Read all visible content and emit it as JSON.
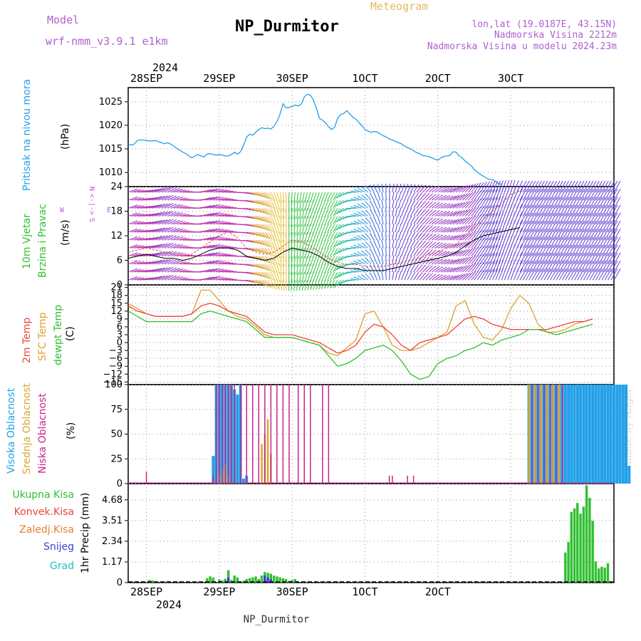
{
  "header": {
    "model_label": "Model",
    "model_name": "wrf-nmm_v3.9.1 e1km",
    "station": "NP_Durmitor",
    "meteogram": "Meteogram",
    "lonlat": "lon,lat (19.0187E, 43.15N)",
    "altitude": "Nadmorska Visina 2212m",
    "model_altitude": "Nadmorska Visina u modelu 2024.23m",
    "watermark": "made by Angel",
    "footer_station": "NP_Durmitor"
  },
  "colors": {
    "pressure": "#22a0e8",
    "wind_speed": "#000000",
    "wind_gust": "#e8463c",
    "t2m": "#e8463c",
    "tsfc": "#e0a030",
    "dewpoint": "#30c030",
    "cloud_high": "#22a0e8",
    "cloud_mid": "#d8a830",
    "cloud_low": "#cc2288",
    "precip_total": "#30c030",
    "precip_conv": "#e8463c",
    "precip_snow": "#4040d0",
    "precip_grad": "#20c0c0",
    "grid": "#909090"
  },
  "time_axis": {
    "year_label": "2024",
    "dates": [
      "28SEP",
      "29SEP",
      "30SEP",
      "1OCT",
      "2OCT",
      "3OCT"
    ]
  },
  "chart_data": [
    {
      "type": "line",
      "panel": "pressure",
      "ylabel": "Pritisak na nivou mora",
      "unit": "(hPa)",
      "ylim": [
        1007,
        1028
      ],
      "yticks": [
        1010,
        1015,
        1020,
        1025
      ],
      "x_hours_start": -6,
      "x_hours_step": 1,
      "series": [
        {
          "values": [
            1016.1,
            1015.8,
            1016.0,
            1016.8,
            1016.9,
            1016.9,
            1016.8,
            1016.7,
            1016.7,
            1016.8,
            1016.5,
            1016.3,
            1016.1,
            1016.3,
            1016.0,
            1015.6,
            1015.1,
            1014.7,
            1014.3,
            1014.0,
            1013.5,
            1013.1,
            1013.5,
            1013.8,
            1013.5,
            1013.3,
            1013.9,
            1014.0,
            1013.8,
            1013.7,
            1013.8,
            1013.7,
            1013.5,
            1013.5,
            1013.8,
            1014.3,
            1013.9,
            1014.4,
            1015.8,
            1017.5,
            1018.1,
            1017.9,
            1018.5,
            1019.1,
            1019.5,
            1019.3,
            1019.4,
            1019.2,
            1019.8,
            1020.8,
            1022.3,
            1024.6,
            1023.7,
            1023.8,
            1024.0,
            1024.3,
            1024.1,
            1024.5,
            1026.0,
            1026.6,
            1026.4,
            1025.4,
            1023.6,
            1021.5,
            1021.1,
            1020.5,
            1019.7,
            1019.1,
            1019.6,
            1021.5,
            1022.3,
            1022.5,
            1023.1,
            1022.4,
            1021.7,
            1021.3,
            1020.6,
            1019.9,
            1019.1,
            1018.8,
            1018.5,
            1018.7,
            1018.6,
            1018.2,
            1017.8,
            1017.5,
            1017.1,
            1016.9,
            1016.6,
            1016.3,
            1016.1,
            1015.6,
            1015.3,
            1015.0,
            1014.6,
            1014.2,
            1014.0,
            1013.6,
            1013.5,
            1013.4,
            1013.1,
            1012.8,
            1012.6,
            1013.1,
            1013.4,
            1013.5,
            1013.6,
            1014.4,
            1014.3,
            1013.5,
            1013.1,
            1012.4,
            1011.9,
            1011.4,
            1010.6,
            1010.1,
            1009.6,
            1009.2,
            1008.8,
            1008.5,
            1008.5,
            1008.1,
            1007.6,
            1007.5
          ]
        }
      ]
    },
    {
      "type": "line",
      "panel": "wind",
      "ylabel_lines": [
        "10m Vjetar",
        "Brzina i Pravac"
      ],
      "unit": "(m/s)",
      "direction_legend": [
        "N",
        "<-|->",
        "S",
        "W",
        "E"
      ],
      "ylim": [
        0,
        24
      ],
      "yticks": [
        0,
        6,
        12,
        18,
        24
      ],
      "x_hours_start": -6,
      "x_hours_step": 3,
      "speed": [
        6.5,
        7.0,
        7.5,
        7.0,
        6.5,
        6.5,
        6.0,
        6.5,
        7.5,
        8.5,
        9.0,
        9.0,
        8.5,
        7.0,
        6.5,
        6.0,
        6.5,
        8.0,
        9.0,
        8.5,
        8.0,
        7.0,
        5.5,
        4.5,
        4.0,
        4.0,
        3.5,
        3.5,
        3.5,
        4.0,
        4.5,
        5.0,
        5.5,
        6.0,
        6.5,
        7.0,
        8.0,
        9.5,
        11.0,
        12.0,
        12.5,
        13.0,
        13.5,
        14.0
      ],
      "gust": [
        8.0,
        8.5,
        9.0,
        8.5,
        8.0,
        7.5,
        7.0,
        7.5,
        9.0,
        10.5,
        12.0,
        13.0,
        11.5,
        9.0,
        8.0,
        7.5,
        8.0,
        9.5,
        11.0,
        10.5,
        9.5,
        8.0,
        6.5,
        5.5,
        5.0,
        5.0,
        4.5,
        4.5,
        4.5,
        5.0,
        5.5,
        6.0,
        6.5,
        7.5,
        8.0,
        9.0,
        10.0,
        12.0,
        14.0,
        16.0,
        18.0,
        20.0,
        22.0,
        23.0
      ],
      "direction_deg": [
        250,
        260,
        255,
        245,
        240,
        250,
        265,
        270,
        255,
        250,
        260,
        270,
        275,
        285,
        300,
        320,
        340,
        355,
        5,
        10,
        15,
        20,
        25,
        30,
        60,
        90,
        120,
        150,
        170,
        190,
        200,
        210,
        220,
        230,
        240,
        245,
        235,
        225,
        215,
        210,
        205,
        200,
        200,
        210
      ]
    },
    {
      "type": "line",
      "panel": "temperature",
      "ylabel_lines": [
        "2m Temp",
        "SFC Temp",
        "dewpt Temp"
      ],
      "unit": "(C)",
      "ylim": [
        -16,
        22
      ],
      "yticks": [
        -15,
        -12,
        -9,
        -6,
        -3,
        0,
        3,
        6,
        9,
        12,
        15,
        18,
        21
      ],
      "x_hours_start": -6,
      "x_hours_step": 3,
      "series": [
        {
          "name": "2m Temp",
          "values": [
            14,
            12,
            11,
            10,
            10,
            10,
            10,
            11,
            14,
            15,
            14,
            12,
            11,
            10,
            7,
            4,
            3,
            3,
            3,
            2,
            1,
            0,
            -2,
            -4,
            -3,
            -1,
            4,
            7,
            6,
            3,
            -1,
            -3,
            0,
            1,
            2,
            3,
            6,
            9,
            10,
            9,
            7,
            6,
            5,
            5,
            5,
            5,
            5,
            6,
            7,
            8,
            8,
            9
          ]
        },
        {
          "name": "SFC Temp",
          "values": [
            15,
            13,
            11,
            10,
            10,
            10,
            10,
            11,
            20,
            20,
            16,
            12,
            10,
            9,
            6,
            3,
            2,
            2,
            2,
            1,
            0,
            -1,
            -4,
            -5,
            -2,
            1,
            11,
            12,
            6,
            -1,
            -3,
            -3,
            -2,
            0,
            2,
            4,
            14,
            16,
            7,
            2,
            1,
            5,
            13,
            18,
            15,
            7,
            4,
            4,
            5,
            7,
            8,
            9
          ]
        },
        {
          "name": "dewpt Temp",
          "values": [
            12,
            10,
            8,
            8,
            8,
            8,
            8,
            8,
            11,
            12,
            11,
            10,
            9,
            8,
            5,
            2,
            2,
            2,
            2,
            1,
            0,
            -1,
            -5,
            -9,
            -8,
            -6,
            -3,
            -2,
            -1,
            -3,
            -7,
            -12,
            -14,
            -13,
            -8,
            -6,
            -5,
            -3,
            -2,
            0,
            -1,
            1,
            2,
            3,
            5,
            5,
            4,
            3,
            4,
            5,
            6,
            7
          ]
        }
      ]
    },
    {
      "type": "bar",
      "panel": "clouds",
      "ylabel_lines": [
        "Visoka Oblacnost",
        "Srednja Oblacnost",
        "Niska Oblacnost"
      ],
      "unit": "(%)",
      "ylim": [
        0,
        100
      ],
      "yticks": [
        0,
        25,
        50,
        75,
        100
      ],
      "bars": {
        "high": [
          [
            22,
            28
          ],
          [
            23,
            100
          ],
          [
            24,
            100
          ],
          [
            25,
            100
          ],
          [
            26,
            100
          ],
          [
            27,
            100
          ],
          [
            28,
            100
          ],
          [
            29,
            95
          ],
          [
            30,
            90
          ],
          [
            31,
            100
          ],
          [
            32,
            5
          ],
          [
            33,
            8
          ],
          [
            126,
            100
          ],
          [
            127,
            100
          ],
          [
            128,
            100
          ],
          [
            129,
            100
          ],
          [
            130,
            100
          ],
          [
            131,
            100
          ],
          [
            132,
            100
          ],
          [
            133,
            100
          ],
          [
            134,
            100
          ],
          [
            135,
            100
          ],
          [
            136,
            100
          ],
          [
            137,
            100
          ],
          [
            138,
            100
          ],
          [
            139,
            100
          ],
          [
            140,
            100
          ],
          [
            141,
            100
          ],
          [
            142,
            100
          ],
          [
            143,
            100
          ],
          [
            144,
            100
          ],
          [
            145,
            100
          ],
          [
            146,
            100
          ],
          [
            147,
            100
          ],
          [
            148,
            100
          ],
          [
            149,
            100
          ],
          [
            150,
            100
          ],
          [
            151,
            100
          ],
          [
            152,
            100
          ],
          [
            153,
            100
          ],
          [
            154,
            100
          ],
          [
            155,
            100
          ],
          [
            156,
            100
          ],
          [
            157,
            100
          ],
          [
            158,
            100
          ],
          [
            159,
            18
          ]
        ],
        "mid": [
          [
            24,
            10
          ],
          [
            25,
            15
          ],
          [
            26,
            20
          ],
          [
            27,
            8
          ],
          [
            38,
            40
          ],
          [
            39,
            50
          ],
          [
            40,
            65
          ],
          [
            41,
            30
          ],
          [
            126,
            100
          ],
          [
            128,
            100
          ],
          [
            130,
            100
          ],
          [
            132,
            100
          ],
          [
            134,
            100
          ],
          [
            136,
            100
          ]
        ],
        "low": [
          [
            0,
            12
          ],
          [
            22,
            8
          ],
          [
            23,
            100
          ],
          [
            24,
            100
          ],
          [
            25,
            100
          ],
          [
            26,
            100
          ],
          [
            27,
            100
          ],
          [
            28,
            100
          ],
          [
            29,
            100
          ],
          [
            31,
            100
          ],
          [
            33,
            100
          ],
          [
            35,
            100
          ],
          [
            37,
            100
          ],
          [
            39,
            100
          ],
          [
            41,
            100
          ],
          [
            43,
            100
          ],
          [
            45,
            100
          ],
          [
            47,
            100
          ],
          [
            50,
            100
          ],
          [
            52,
            100
          ],
          [
            54,
            100
          ],
          [
            58,
            100
          ],
          [
            60,
            100
          ],
          [
            80,
            8
          ],
          [
            81,
            8
          ],
          [
            86,
            8
          ],
          [
            88,
            8
          ],
          [
            127,
            100
          ],
          [
            129,
            100
          ],
          [
            131,
            100
          ],
          [
            133,
            100
          ],
          [
            135,
            100
          ],
          [
            137,
            100
          ]
        ]
      }
    },
    {
      "type": "bar",
      "panel": "precip",
      "legend": [
        "Ukupna Kisa",
        "Konvek.Kisa",
        "Zaledj.Kisa",
        "Snijeg",
        "Grad"
      ],
      "ylabel": "1hr Precip (mm)",
      "ylim": [
        0,
        5.6
      ],
      "yticks": [
        0,
        1.17,
        2.34,
        3.51,
        4.68
      ],
      "bars": {
        "total": [
          [
            1,
            0.15
          ],
          [
            2,
            0.12
          ],
          [
            20,
            0.25
          ],
          [
            21,
            0.35
          ],
          [
            22,
            0.28
          ],
          [
            24,
            0.18
          ],
          [
            25,
            0.12
          ],
          [
            26,
            0.22
          ],
          [
            27,
            0.7
          ],
          [
            28,
            0.15
          ],
          [
            29,
            0.4
          ],
          [
            30,
            0.3
          ],
          [
            32,
            0.1
          ],
          [
            33,
            0.2
          ],
          [
            34,
            0.25
          ],
          [
            35,
            0.3
          ],
          [
            36,
            0.35
          ],
          [
            37,
            0.2
          ],
          [
            38,
            0.4
          ],
          [
            39,
            0.6
          ],
          [
            40,
            0.55
          ],
          [
            41,
            0.5
          ],
          [
            42,
            0.4
          ],
          [
            43,
            0.35
          ],
          [
            44,
            0.3
          ],
          [
            45,
            0.25
          ],
          [
            46,
            0.2
          ],
          [
            47,
            0.1
          ],
          [
            48,
            0.15
          ],
          [
            49,
            0.2
          ],
          [
            138,
            1.7
          ],
          [
            139,
            2.3
          ],
          [
            140,
            4.0
          ],
          [
            141,
            4.2
          ],
          [
            142,
            4.5
          ],
          [
            143,
            3.9
          ],
          [
            144,
            4.3
          ],
          [
            145,
            5.5
          ],
          [
            146,
            4.8
          ],
          [
            147,
            3.5
          ],
          [
            148,
            1.2
          ],
          [
            149,
            0.8
          ],
          [
            150,
            0.9
          ],
          [
            151,
            0.85
          ],
          [
            152,
            1.1
          ]
        ],
        "snow": [
          [
            27,
            0.3
          ],
          [
            39,
            0.4
          ],
          [
            40,
            0.3
          ],
          [
            41,
            0.2
          ]
        ],
        "grad": [
          [
            42,
            0.1
          ]
        ]
      }
    }
  ]
}
